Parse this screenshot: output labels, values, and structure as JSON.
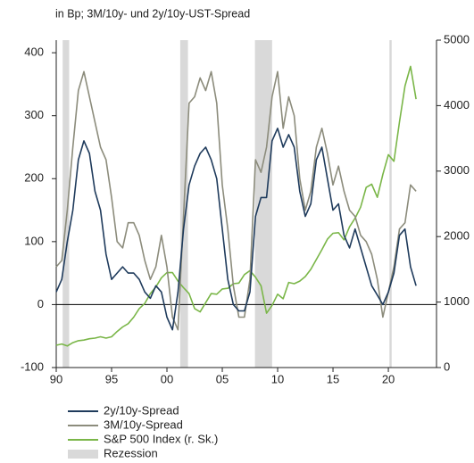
{
  "chart_data": {
    "type": "line",
    "subtitle": "in Bp; 3M/10y- und 2y/10y-UST-Spread",
    "x": [
      1990,
      1990.5,
      1991,
      1991.5,
      1992,
      1992.5,
      1993,
      1993.5,
      1994,
      1994.5,
      1995,
      1995.5,
      1996,
      1996.5,
      1997,
      1997.5,
      1998,
      1998.5,
      1999,
      1999.5,
      2000,
      2000.5,
      2001,
      2001.5,
      2002,
      2002.5,
      2003,
      2003.5,
      2004,
      2004.5,
      2005,
      2005.5,
      2006,
      2006.5,
      2007,
      2007.5,
      2008,
      2008.5,
      2009,
      2009.5,
      2010,
      2010.5,
      2011,
      2011.5,
      2012,
      2012.5,
      2013,
      2013.5,
      2014,
      2014.5,
      2015,
      2015.5,
      2016,
      2016.5,
      2017,
      2017.5,
      2018,
      2018.5,
      2019,
      2019.5,
      2020,
      2020.5,
      2021,
      2021.5,
      2022,
      2022.5
    ],
    "series": [
      {
        "name": "2y/10y-Spread",
        "color": "#1f3b5c",
        "values": [
          20,
          40,
          100,
          150,
          230,
          260,
          240,
          180,
          150,
          80,
          40,
          50,
          60,
          50,
          50,
          40,
          20,
          10,
          30,
          20,
          -20,
          -40,
          20,
          120,
          190,
          220,
          240,
          250,
          230,
          200,
          120,
          40,
          0,
          -10,
          -10,
          20,
          140,
          170,
          170,
          260,
          280,
          250,
          270,
          250,
          180,
          140,
          160,
          230,
          250,
          200,
          150,
          160,
          110,
          90,
          120,
          90,
          60,
          30,
          15,
          0,
          20,
          50,
          110,
          120,
          60,
          30
        ]
      },
      {
        "name": "3M/10y-Spread",
        "color": "#8c8c7c",
        "values": [
          60,
          70,
          150,
          250,
          340,
          370,
          330,
          290,
          250,
          230,
          170,
          100,
          90,
          130,
          130,
          110,
          70,
          40,
          60,
          110,
          60,
          -20,
          -40,
          140,
          320,
          330,
          360,
          340,
          370,
          320,
          190,
          120,
          30,
          -20,
          -20,
          40,
          230,
          210,
          250,
          330,
          370,
          280,
          330,
          300,
          200,
          150,
          180,
          250,
          280,
          240,
          190,
          220,
          180,
          150,
          140,
          110,
          100,
          80,
          40,
          -20,
          20,
          60,
          120,
          130,
          190,
          180
        ]
      },
      {
        "name": "S&P 500 Index (r. Sk.)",
        "color": "#7ab648",
        "axis": "y2",
        "values": [
          340,
          360,
          330,
          380,
          410,
          420,
          440,
          450,
          470,
          450,
          470,
          550,
          620,
          670,
          770,
          900,
          980,
          1130,
          1230,
          1370,
          1450,
          1450,
          1320,
          1220,
          1130,
          900,
          850,
          990,
          1130,
          1120,
          1200,
          1210,
          1280,
          1290,
          1420,
          1480,
          1380,
          1250,
          830,
          950,
          1120,
          1050,
          1300,
          1280,
          1320,
          1390,
          1500,
          1650,
          1800,
          1960,
          2050,
          2060,
          1950,
          2150,
          2280,
          2450,
          2750,
          2800,
          2600,
          2950,
          3250,
          3150,
          3750,
          4300,
          4600,
          4100
        ]
      }
    ],
    "recession_label": "Rezession",
    "recession_color": "#d9d9d9",
    "recessions": [
      [
        1990.58,
        1991.17
      ],
      [
        2001.2,
        2001.9
      ],
      [
        2007.95,
        2009.5
      ],
      [
        2020.1,
        2020.3
      ]
    ],
    "xlim": [
      1990,
      2024.35
    ],
    "xticks": [
      {
        "value": 1990,
        "label": "90"
      },
      {
        "value": 1995,
        "label": "95"
      },
      {
        "value": 2000,
        "label": "00"
      },
      {
        "value": 2005,
        "label": "05"
      },
      {
        "value": 2010,
        "label": "10"
      },
      {
        "value": 2015,
        "label": "15"
      },
      {
        "value": 2020,
        "label": "20"
      }
    ],
    "ylim": [
      -100,
      420
    ],
    "yticks": [
      -100,
      0,
      100,
      200,
      300,
      400
    ],
    "y2lim": [
      0,
      5000
    ],
    "y2ticks": [
      0,
      1000,
      2000,
      3000,
      4000,
      5000
    ]
  }
}
